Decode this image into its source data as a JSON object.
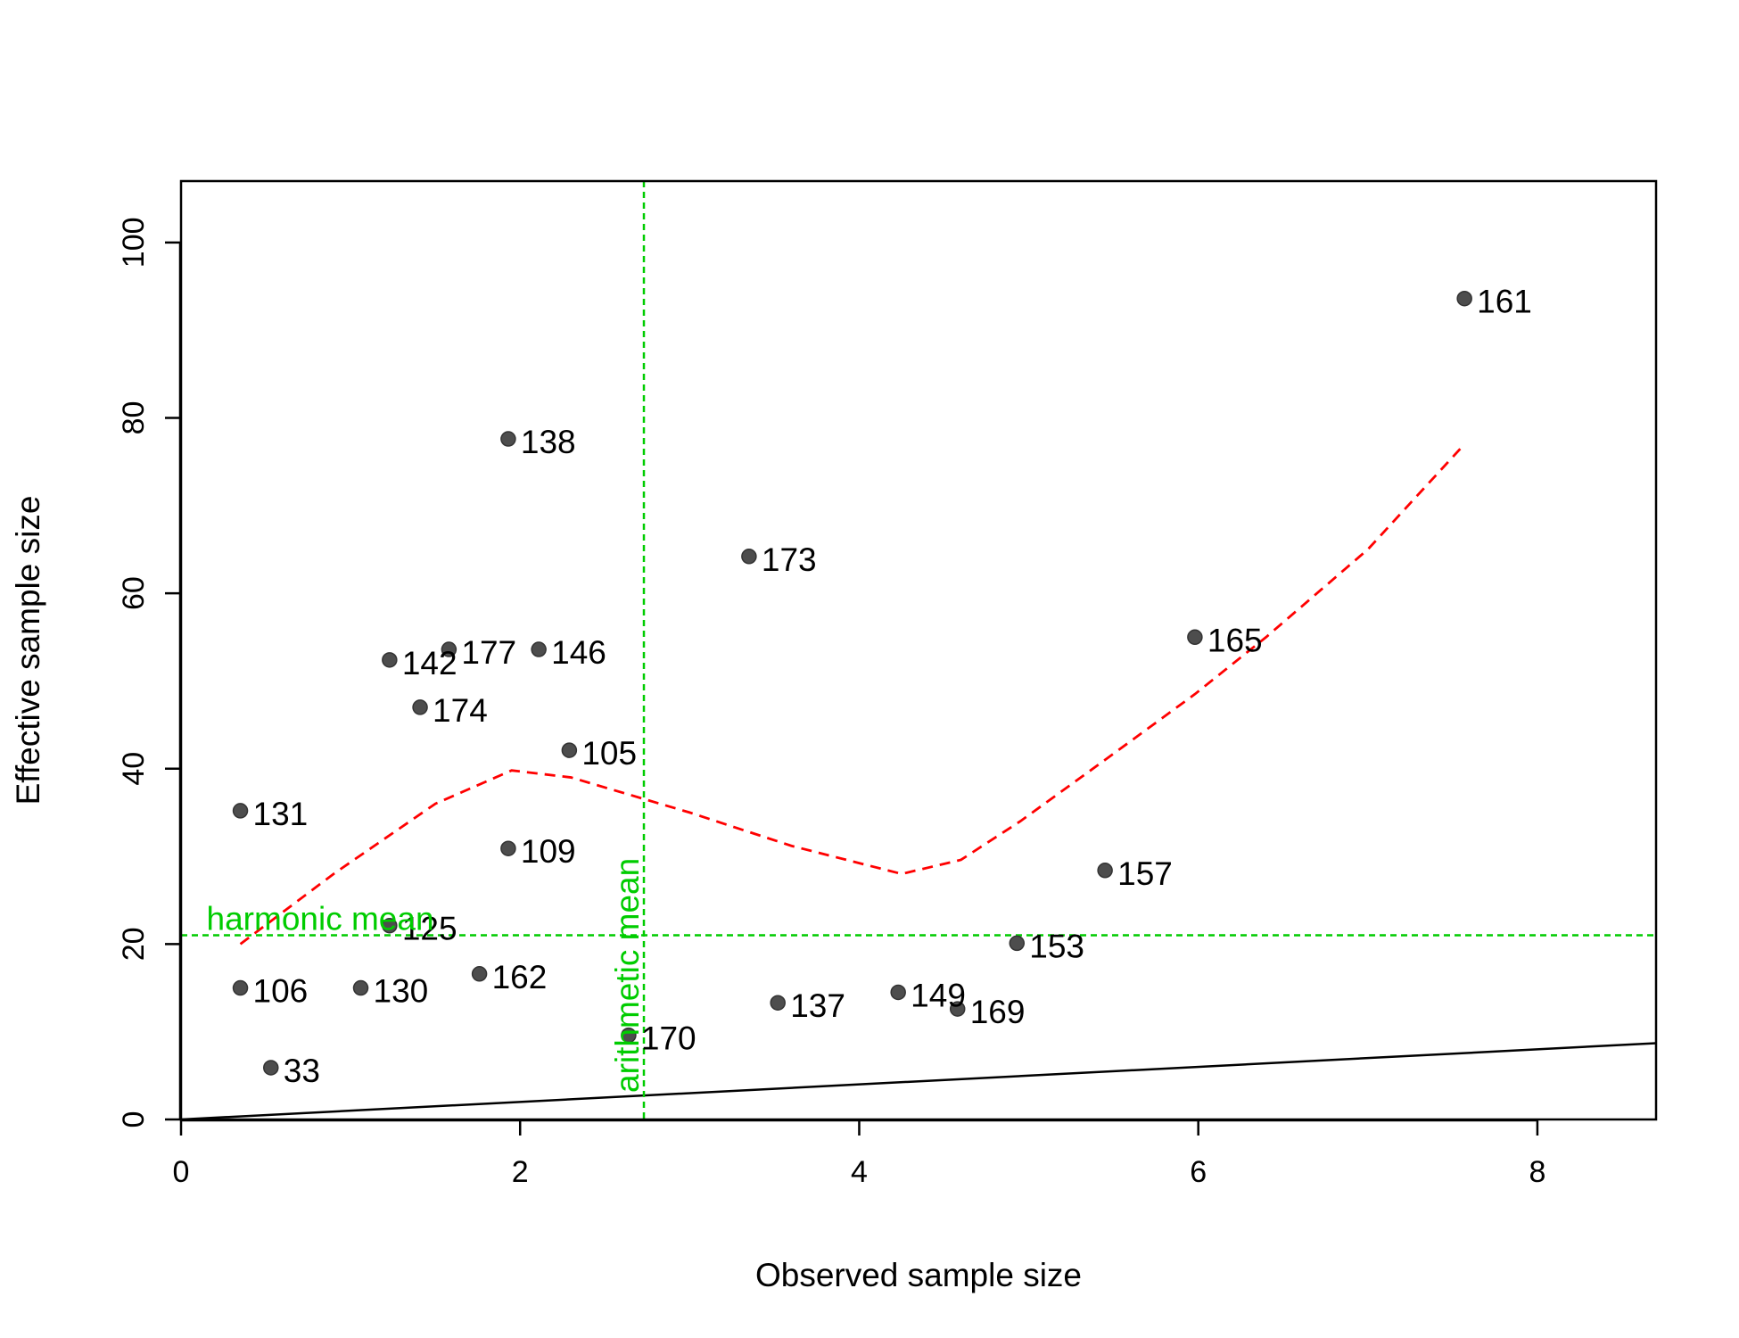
{
  "chart_data": {
    "type": "scatter",
    "xlabel": "Observed sample size",
    "ylabel": "Effective sample size",
    "xlim": [
      0,
      8.7
    ],
    "ylim": [
      0,
      107
    ],
    "x_ticks": [
      0,
      2,
      4,
      6,
      8
    ],
    "y_ticks": [
      0,
      20,
      40,
      60,
      80,
      100
    ],
    "points": [
      {
        "label": "161",
        "x": 7.57,
        "y": 93.6
      },
      {
        "label": "138",
        "x": 1.93,
        "y": 77.6
      },
      {
        "label": "173",
        "x": 3.35,
        "y": 64.2
      },
      {
        "label": "165",
        "x": 5.98,
        "y": 55.0
      },
      {
        "label": "177",
        "x": 1.58,
        "y": 53.6
      },
      {
        "label": "146",
        "x": 2.11,
        "y": 53.6
      },
      {
        "label": "142",
        "x": 1.23,
        "y": 52.4
      },
      {
        "label": "174",
        "x": 1.41,
        "y": 47.0
      },
      {
        "label": "105",
        "x": 2.29,
        "y": 42.1
      },
      {
        "label": "131",
        "x": 0.35,
        "y": 35.2
      },
      {
        "label": "109",
        "x": 1.93,
        "y": 30.9
      },
      {
        "label": "157",
        "x": 5.45,
        "y": 28.4
      },
      {
        "label": "125",
        "x": 1.23,
        "y": 22.1
      },
      {
        "label": "153",
        "x": 4.93,
        "y": 20.1
      },
      {
        "label": "162",
        "x": 1.76,
        "y": 16.6
      },
      {
        "label": "106",
        "x": 0.35,
        "y": 15.0
      },
      {
        "label": "130",
        "x": 1.06,
        "y": 15.0
      },
      {
        "label": "149",
        "x": 4.23,
        "y": 14.5
      },
      {
        "label": "137",
        "x": 3.52,
        "y": 13.3
      },
      {
        "label": "169",
        "x": 4.58,
        "y": 12.6
      },
      {
        "label": "170",
        "x": 2.64,
        "y": 9.6
      },
      {
        "label": "33",
        "x": 0.53,
        "y": 5.9
      }
    ],
    "smooth_line": {
      "color": "#ff0000",
      "points": [
        [
          0.35,
          20.0
        ],
        [
          0.9,
          28.0
        ],
        [
          1.5,
          36.0
        ],
        [
          1.95,
          39.8
        ],
        [
          2.3,
          39.0
        ],
        [
          3.0,
          35.0
        ],
        [
          3.6,
          31.2
        ],
        [
          4.25,
          28.0
        ],
        [
          4.6,
          29.6
        ],
        [
          4.95,
          34.0
        ],
        [
          5.45,
          41.0
        ],
        [
          5.98,
          48.5
        ],
        [
          6.4,
          55.0
        ],
        [
          7.0,
          65.0
        ],
        [
          7.57,
          77.0
        ]
      ]
    },
    "reference_line": {
      "slope": 1,
      "intercept": 0,
      "color": "#000000"
    },
    "arithmetic_mean": {
      "x": 2.73,
      "label": "arithmetic mean",
      "color": "#00cc00"
    },
    "harmonic_mean": {
      "y": 21.0,
      "label": "harmonic mean",
      "color": "#00cc00"
    },
    "point_color": "#4d4d4d",
    "grid": false
  }
}
